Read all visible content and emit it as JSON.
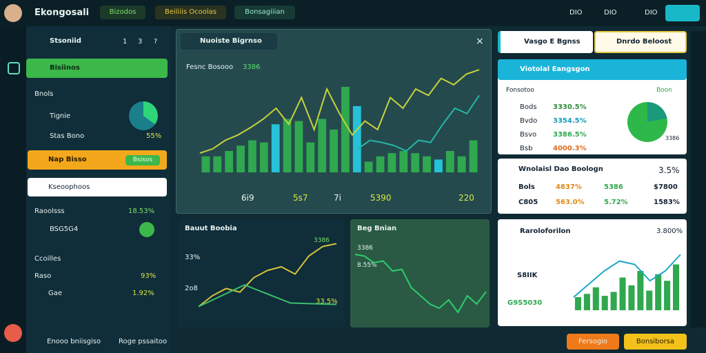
{
  "topbar": {
    "brand": "Ekongosali",
    "tabs": [
      "Bizodos",
      "Beiliiis Ocoolas",
      "Bonsagiiian"
    ],
    "status": [
      "DIO",
      "DIO",
      "DIO"
    ]
  },
  "sidebar": {
    "header": "Stsoniid",
    "header_icons": [
      "1",
      "3",
      "?"
    ],
    "active": "Bisiinos",
    "section": "Bnols",
    "rows": [
      {
        "label": "Tignie"
      },
      {
        "label": "Stas Bono",
        "value": "55%"
      }
    ],
    "highlight": "Nap Bisso",
    "highlight_button": "Bsisos",
    "search": "Kseoophoos",
    "stats": [
      {
        "label": "Raoolsss",
        "value": "18.53%"
      },
      {
        "label": "BSG5G4"
      }
    ],
    "group": "Ccoilles",
    "group_rows": [
      {
        "label": "Raso",
        "value": "93%"
      },
      {
        "label": "Gae",
        "value": "1.92%"
      }
    ],
    "footer": [
      "Enooo bniisgiso",
      "Roge pssaitoo"
    ]
  },
  "main_panel": {
    "title": "Nuoiste Bigrnso",
    "legend": "Fesnc Bosooo",
    "legend_value": "3386",
    "x_labels": [
      "6i9",
      "5s7",
      "7i",
      "5390",
      "220"
    ],
    "bars": [
      15,
      15,
      20,
      25,
      30,
      28,
      45,
      50,
      48,
      28,
      50,
      40,
      80,
      62,
      10,
      15,
      18,
      20,
      18,
      15,
      12,
      20,
      15,
      30
    ],
    "bar_colors": [
      "#2fa84f",
      "#25c2d8"
    ],
    "lines": [
      {
        "color": "#c8d43a",
        "values": [
          18,
          22,
          30,
          35,
          42,
          50,
          60,
          45,
          70,
          40,
          78,
          55,
          35,
          48,
          40,
          70,
          60,
          78,
          72,
          88,
          82,
          92,
          96
        ]
      },
      {
        "color": "#22b8a8",
        "values": [
          null,
          null,
          null,
          null,
          null,
          null,
          null,
          null,
          null,
          null,
          null,
          null,
          null,
          22,
          30,
          28,
          25,
          20,
          30,
          28,
          45,
          60,
          55,
          72
        ]
      }
    ]
  },
  "lower_left": {
    "title": "Bauut Boobia",
    "badge": "3386",
    "label_a": "33%",
    "label_b": "2o8",
    "label_c": "33.5%",
    "lines": [
      {
        "color": "#d4c23a",
        "values": [
          5,
          20,
          30,
          25,
          45,
          55,
          60,
          50,
          75,
          88,
          92
        ]
      },
      {
        "color": "#3bbf6a",
        "values": [
          5,
          35,
          10,
          8
        ]
      }
    ]
  },
  "lower_mid": {
    "title": "Beg Bnian",
    "label_a": "3386",
    "label_b": "8.55%",
    "lines": [
      {
        "color": "#2ecc71",
        "values": [
          80,
          78,
          70,
          72,
          60,
          62,
          40,
          30,
          20,
          15,
          25,
          10,
          30,
          20,
          35
        ]
      }
    ]
  },
  "right": {
    "profile": "Vasgo E Bgnss",
    "select": "Dnrdo Beloost",
    "card1": {
      "title": "Viotolal Eangsgon",
      "col_a": "Fonsotoo",
      "col_b": "Boon",
      "rows": [
        {
          "label": "Bods",
          "value": "3330.5%"
        },
        {
          "label": "Bvdo",
          "value": "3354.5%"
        },
        {
          "label": "Bsvo",
          "value": "3386.5%"
        },
        {
          "label": "Bsb",
          "value": "4000.3%"
        }
      ],
      "pie_label": "3386"
    },
    "card2": {
      "title": "Wnolaisl Dao Boologn",
      "value": "3.5%",
      "rows": [
        [
          "Bols",
          "4837%",
          "5386",
          "$7800"
        ],
        [
          "C805",
          "563.0%",
          "5.72%",
          "1583%"
        ]
      ]
    },
    "card3": {
      "title": "Raroloforilon",
      "value": "3.800%",
      "label_a": "S8IIK",
      "label_b": "G9S5030",
      "bars": [
        20,
        25,
        35,
        22,
        28,
        50,
        38,
        60,
        30,
        55,
        45,
        70
      ],
      "lines": [
        {
          "color": "#1aa7c4",
          "values": [
            20,
            40,
            60,
            75,
            70,
            45,
            60,
            85
          ]
        }
      ]
    },
    "buttons": [
      "Fersogio",
      "Bonsiborsa"
    ]
  }
}
